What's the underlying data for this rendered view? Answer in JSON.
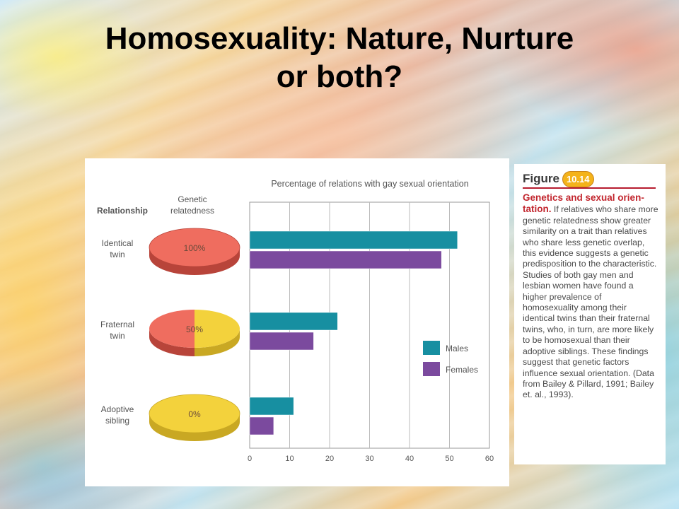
{
  "slide": {
    "title_line1": "Homosexuality: Nature, Nurture",
    "title_line2": "or both?"
  },
  "figure": {
    "label": "Figure",
    "number": "10.14",
    "caption_title": "Genetics and sexual orien-tation.",
    "caption_body": "If relatives who share more genetic relatedness show greater similarity on a trait than relatives who share less genetic overlap, this evidence suggests a genetic predisposition to the characteristic. Studies of both gay men and lesbian women have found a higher prevalence of homosexuality among their identical twins than their fraternal twins, who, in turn, are more likely to be homosexual than their adoptive siblings. These findings suggest that genetic factors influence sexual orientation. (Data from Bailey & Pillard, 1991; Bailey et. al., 1993)."
  },
  "chart_data": {
    "type": "bar",
    "orientation": "horizontal",
    "title": "Percentage of relations with gay sexual orientation",
    "column_headers": {
      "relationship": "Relationship",
      "genetic": "Genetic relatedness"
    },
    "categories": [
      {
        "name_lines": [
          "Identical",
          "twin"
        ],
        "relatedness": 100,
        "relatedness_label": "100%"
      },
      {
        "name_lines": [
          "Fraternal",
          "twin"
        ],
        "relatedness": 50,
        "relatedness_label": "50%"
      },
      {
        "name_lines": [
          "Adoptive",
          "sibling"
        ],
        "relatedness": 0,
        "relatedness_label": "0%"
      }
    ],
    "series": [
      {
        "name": "Males",
        "values": [
          52,
          22,
          11
        ],
        "color": "#178fa1"
      },
      {
        "name": "Females",
        "values": [
          48,
          16,
          6
        ],
        "color": "#7b4a9e"
      }
    ],
    "xlim": [
      0,
      60
    ],
    "xticks": [
      0,
      10,
      20,
      30,
      40,
      50,
      60
    ],
    "grid": true,
    "legend_placement": "right",
    "pie_colors": {
      "shared": "#ef6d5f",
      "unshared": "#f3d23c"
    }
  }
}
